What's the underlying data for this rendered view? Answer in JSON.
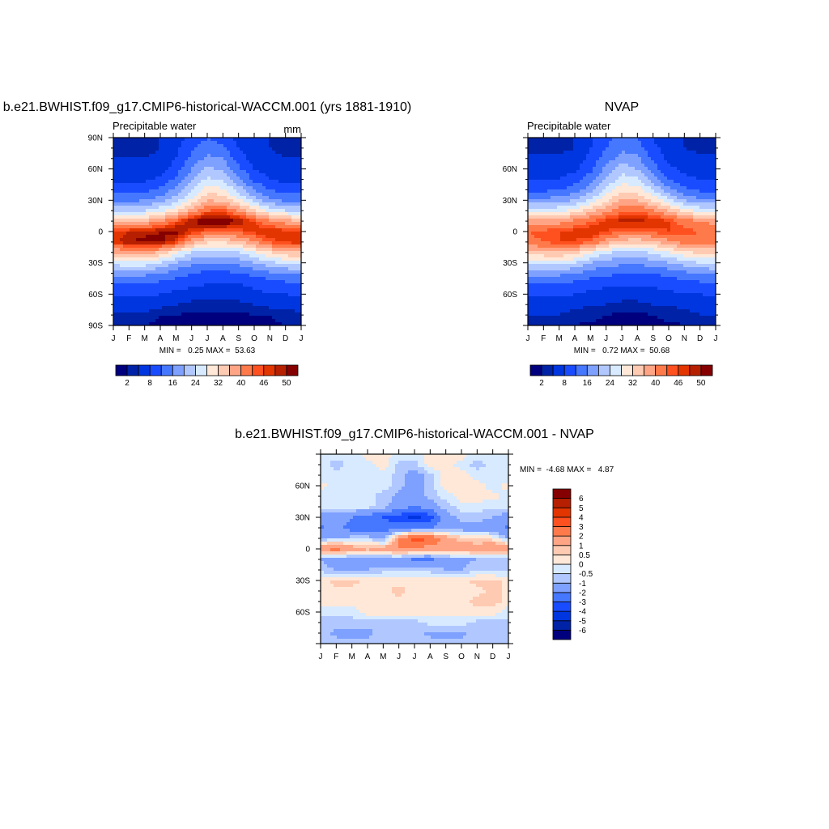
{
  "chart_data": [
    {
      "id": "model",
      "type": "heatmap",
      "title": "b.e21.BWHIST.f09_g17.CMIP6-historical-WACCM.001 (yrs 1881-1910)",
      "subtitle": "Precipitable water",
      "units": "mm",
      "x_ticks": [
        "J",
        "F",
        "M",
        "A",
        "M",
        "J",
        "J",
        "A",
        "S",
        "O",
        "N",
        "D",
        "J"
      ],
      "y_ticks": [
        {
          "value": 90,
          "label": "90N"
        },
        {
          "value": 60,
          "label": "60N"
        },
        {
          "value": 30,
          "label": "30N"
        },
        {
          "value": 0,
          "label": "0"
        },
        {
          "value": -30,
          "label": "30S"
        },
        {
          "value": -60,
          "label": "60S"
        },
        {
          "value": -90,
          "label": "90S"
        }
      ],
      "ylim": [
        -90,
        90
      ],
      "lat": [
        90,
        80,
        70,
        60,
        50,
        40,
        30,
        20,
        10,
        0,
        -10,
        -20,
        -30,
        -40,
        -50,
        -60,
        -70,
        -80,
        -90
      ],
      "values": [
        [
          3,
          3,
          3,
          4,
          6,
          9,
          12,
          10,
          7,
          5,
          4,
          3,
          3
        ],
        [
          3,
          3,
          3,
          4,
          7,
          11,
          14,
          13,
          8,
          5,
          4,
          3,
          3
        ],
        [
          4,
          4,
          4,
          5,
          8,
          13,
          17,
          16,
          10,
          6,
          5,
          4,
          4
        ],
        [
          5,
          5,
          5,
          6,
          10,
          16,
          21,
          19,
          13,
          8,
          6,
          5,
          5
        ],
        [
          7,
          7,
          7,
          9,
          13,
          19,
          25,
          23,
          17,
          11,
          8,
          7,
          7
        ],
        [
          10,
          10,
          11,
          13,
          17,
          23,
          30,
          29,
          22,
          16,
          12,
          10,
          10
        ],
        [
          15,
          15,
          16,
          18,
          22,
          29,
          36,
          35,
          29,
          22,
          17,
          15,
          15
        ],
        [
          24,
          23,
          24,
          27,
          31,
          38,
          44,
          45,
          40,
          33,
          27,
          24,
          24
        ],
        [
          36,
          35,
          36,
          40,
          45,
          50,
          53,
          53,
          50,
          46,
          41,
          38,
          36
        ],
        [
          47,
          48,
          49,
          50,
          51,
          47,
          44,
          44,
          45,
          47,
          48,
          47,
          47
        ],
        [
          47,
          50,
          51,
          51,
          47,
          38,
          33,
          32,
          35,
          40,
          45,
          47,
          47
        ],
        [
          36,
          38,
          38,
          35,
          29,
          24,
          22,
          22,
          24,
          28,
          32,
          35,
          36
        ],
        [
          26,
          27,
          27,
          24,
          20,
          17,
          16,
          16,
          17,
          20,
          23,
          25,
          26
        ],
        [
          17,
          18,
          17,
          16,
          14,
          12,
          11,
          11,
          12,
          13,
          15,
          16,
          17
        ],
        [
          12,
          12,
          12,
          11,
          10,
          9,
          8,
          8,
          8,
          9,
          10,
          11,
          12
        ],
        [
          9,
          9,
          9,
          8,
          7,
          6,
          6,
          6,
          6,
          7,
          8,
          8,
          9
        ],
        [
          6,
          6,
          6,
          5,
          4,
          3,
          3,
          3,
          3,
          4,
          5,
          5,
          6
        ],
        [
          3,
          3,
          3,
          2,
          2,
          1.5,
          1.5,
          1.5,
          1.5,
          2,
          2,
          3,
          3
        ],
        [
          2,
          2,
          2,
          1.5,
          1,
          0.5,
          0.5,
          0.5,
          0.5,
          1,
          1.5,
          2,
          2
        ]
      ],
      "min_max_label": "MIN =   0.25 MAX =  53.63",
      "colorbar": {
        "orientation": "horizontal",
        "levels": [
          2,
          4,
          8,
          12,
          16,
          20,
          24,
          28,
          32,
          36,
          40,
          44,
          46,
          48,
          50
        ],
        "labeled_levels": [
          2,
          8,
          16,
          24,
          32,
          40,
          46,
          50
        ]
      }
    },
    {
      "id": "nvap",
      "type": "heatmap",
      "title": "NVAP",
      "subtitle": "Precipitable water",
      "x_ticks": [
        "J",
        "F",
        "M",
        "A",
        "M",
        "J",
        "J",
        "A",
        "S",
        "O",
        "N",
        "D",
        "J"
      ],
      "y_ticks": [
        {
          "value": 60,
          "label": "60N"
        },
        {
          "value": 30,
          "label": "30N"
        },
        {
          "value": 0,
          "label": "0"
        },
        {
          "value": -30,
          "label": "30S"
        },
        {
          "value": -60,
          "label": "60S"
        }
      ],
      "ylim": [
        -90,
        90
      ],
      "lat": [
        90,
        80,
        70,
        60,
        50,
        40,
        30,
        20,
        10,
        0,
        -10,
        -20,
        -30,
        -40,
        -50,
        -60,
        -70,
        -80,
        -90
      ],
      "values": [
        [
          3,
          3,
          3,
          4,
          7,
          11,
          14,
          12,
          8,
          5,
          4,
          3,
          3
        ],
        [
          3,
          3,
          3,
          4,
          8,
          12,
          15,
          14,
          9,
          6,
          4,
          3,
          3
        ],
        [
          5,
          5,
          5,
          6,
          9,
          14,
          18,
          17,
          11,
          7,
          6,
          5,
          5
        ],
        [
          6,
          6,
          6,
          7,
          11,
          17,
          22,
          20,
          14,
          9,
          7,
          6,
          6
        ],
        [
          8,
          8,
          8,
          10,
          14,
          20,
          26,
          25,
          18,
          12,
          9,
          8,
          8
        ],
        [
          11,
          11,
          12,
          14,
          18,
          25,
          31,
          30,
          24,
          17,
          13,
          11,
          11
        ],
        [
          17,
          17,
          18,
          20,
          25,
          31,
          37,
          36,
          31,
          25,
          20,
          17,
          17
        ],
        [
          27,
          26,
          27,
          30,
          34,
          39,
          43,
          44,
          41,
          36,
          30,
          27,
          27
        ],
        [
          38,
          37,
          38,
          41,
          44,
          47,
          49,
          49,
          48,
          46,
          42,
          40,
          38
        ],
        [
          44,
          45,
          46,
          47,
          48,
          46,
          44,
          44,
          45,
          46,
          45,
          44,
          44
        ],
        [
          43,
          44,
          46,
          46,
          44,
          38,
          34,
          33,
          35,
          39,
          42,
          43,
          43
        ],
        [
          33,
          35,
          36,
          34,
          29,
          25,
          23,
          23,
          25,
          28,
          31,
          33,
          33
        ],
        [
          25,
          26,
          26,
          24,
          20,
          18,
          17,
          17,
          18,
          20,
          22,
          24,
          25
        ],
        [
          17,
          18,
          17,
          16,
          14,
          13,
          12,
          12,
          12,
          13,
          15,
          16,
          17
        ],
        [
          12,
          12,
          12,
          11,
          10,
          9,
          9,
          9,
          9,
          10,
          10,
          11,
          12
        ],
        [
          9,
          9,
          9,
          8,
          7,
          6,
          6,
          6,
          6,
          7,
          8,
          8,
          9
        ],
        [
          6,
          6,
          6,
          5,
          4,
          4,
          3,
          3,
          4,
          4,
          5,
          5,
          6
        ],
        [
          4,
          4,
          4,
          3,
          3,
          2,
          1.5,
          1.5,
          2,
          3,
          3,
          4,
          4
        ],
        [
          2,
          2,
          2,
          2,
          1.5,
          1,
          1,
          1,
          1,
          1.5,
          2,
          2,
          2
        ]
      ],
      "min_max_label": "MIN =   0.72 MAX =  50.68",
      "colorbar": {
        "orientation": "horizontal",
        "levels": [
          2,
          4,
          8,
          12,
          16,
          20,
          24,
          28,
          32,
          36,
          40,
          44,
          46,
          48,
          50
        ],
        "labeled_levels": [
          2,
          8,
          16,
          24,
          32,
          40,
          46,
          50
        ]
      }
    },
    {
      "id": "diff",
      "type": "heatmap",
      "title": "b.e21.BWHIST.f09_g17.CMIP6-historical-WACCM.001 - NVAP",
      "x_ticks": [
        "J",
        "F",
        "M",
        "A",
        "M",
        "J",
        "J",
        "A",
        "S",
        "O",
        "N",
        "D",
        "J"
      ],
      "y_ticks": [
        {
          "value": 60,
          "label": "60N"
        },
        {
          "value": 30,
          "label": "30N"
        },
        {
          "value": 0,
          "label": "0"
        },
        {
          "value": -30,
          "label": "30S"
        },
        {
          "value": -60,
          "label": "60S"
        }
      ],
      "ylim": [
        -90,
        90
      ],
      "lat": [
        90,
        80,
        70,
        60,
        50,
        40,
        30,
        20,
        10,
        0,
        -10,
        -20,
        -30,
        -40,
        -50,
        -60,
        -70,
        -80,
        -90
      ],
      "values": [
        [
          -0.3,
          -0.3,
          -0.3,
          0.3,
          0.3,
          -0.3,
          -0.3,
          0.3,
          0.3,
          0.3,
          -0.3,
          -0.3,
          -0.3
        ],
        [
          -0.3,
          -0.7,
          -0.3,
          -0.3,
          0.3,
          -0.7,
          -0.7,
          0.3,
          0.3,
          -0.3,
          -0.7,
          -0.3,
          -0.3
        ],
        [
          -0.3,
          -0.3,
          -0.3,
          -0.3,
          -0.3,
          -0.7,
          -1.5,
          -0.7,
          0.3,
          0.3,
          -0.3,
          -0.3,
          -0.3
        ],
        [
          0.2,
          -0.3,
          -0.3,
          -0.3,
          -0.3,
          -0.7,
          -1.5,
          -0.8,
          0.3,
          0.3,
          0.3,
          -0.3,
          0.2
        ],
        [
          -0.3,
          -0.3,
          -0.3,
          -0.3,
          -0.7,
          -1.2,
          -1.5,
          -0.8,
          -0.3,
          0.3,
          0.3,
          0.2,
          -0.3
        ],
        [
          -0.3,
          -0.3,
          -0.3,
          -0.3,
          -0.7,
          -1.5,
          -2.2,
          -1.5,
          -0.7,
          -0.3,
          -0.3,
          -0.3,
          -0.3
        ],
        [
          -1.5,
          -1.5,
          -2,
          -2.5,
          -3,
          -3.5,
          -4.3,
          -3.5,
          -1.5,
          -0.7,
          -0.7,
          -1,
          -1.5
        ],
        [
          -2.2,
          -1.5,
          -2.5,
          -3,
          -2.5,
          -2.5,
          -2.2,
          -2,
          -1.5,
          -1.5,
          -1.5,
          -1.5,
          -2.2
        ],
        [
          -1,
          -1,
          -0.7,
          -0.5,
          -1.5,
          2,
          3.5,
          3,
          1.5,
          0.7,
          0.5,
          0.3,
          -1
        ],
        [
          2,
          2.5,
          1.5,
          1.2,
          1.5,
          2,
          2,
          1.5,
          1.5,
          1.5,
          1.5,
          2,
          2
        ],
        [
          -1,
          -1.5,
          -1.5,
          -1.5,
          -1.5,
          -1.5,
          -2.2,
          -2.2,
          -1.5,
          -1.2,
          -1,
          -1,
          -1
        ],
        [
          -0.7,
          -1,
          -1,
          -1,
          -0.7,
          -0.7,
          -0.7,
          -0.7,
          -1,
          -1,
          -0.7,
          -0.7,
          -0.7
        ],
        [
          0.3,
          0.7,
          0.7,
          0.3,
          0.3,
          0.3,
          0.3,
          0.3,
          0.3,
          0.3,
          0.7,
          0.7,
          0.3
        ],
        [
          0.3,
          0.3,
          0.3,
          0.3,
          0.3,
          0.7,
          0.3,
          0.3,
          0.3,
          0.3,
          0.3,
          0.7,
          0.3
        ],
        [
          0.3,
          0.3,
          0.3,
          0.3,
          0.3,
          0.3,
          0.3,
          0.3,
          0.3,
          0.3,
          0.7,
          0.7,
          0.3
        ],
        [
          -0.3,
          -0.3,
          -0.3,
          0.3,
          0.3,
          0.3,
          0.3,
          0.3,
          0.3,
          0.3,
          0.3,
          0.3,
          -0.3
        ],
        [
          -0.7,
          -0.7,
          -0.7,
          -0.7,
          -0.7,
          -0.7,
          -0.7,
          -0.3,
          -0.3,
          -0.3,
          -0.7,
          -0.7,
          -0.7
        ],
        [
          -0.7,
          -1.2,
          -1.2,
          -1.2,
          -0.7,
          -0.7,
          -0.7,
          -1.2,
          -1.2,
          -1.2,
          -0.7,
          -0.7,
          -0.7
        ],
        [
          -0.7,
          -0.7,
          -0.7,
          -0.7,
          -0.7,
          -0.7,
          -0.7,
          -0.7,
          -0.7,
          -0.7,
          -0.7,
          -0.7,
          -0.7
        ]
      ],
      "min_max_label": "MIN =  -4.68 MAX =   4.87",
      "colorbar": {
        "orientation": "vertical",
        "levels": [
          -6,
          -5,
          -4,
          -3,
          -2,
          -1,
          -0.5,
          0,
          0.5,
          1,
          2,
          3,
          4,
          5,
          6
        ],
        "labeled_levels": [
          -6,
          -5,
          -4,
          -3,
          -2,
          -1,
          -0.5,
          0,
          0.5,
          1,
          2,
          3,
          4,
          5,
          6
        ]
      }
    }
  ],
  "colors": [
    "#00007f",
    "#0022a6",
    "#0036e0",
    "#1a4cff",
    "#4677ff",
    "#7ea0ff",
    "#b0c8ff",
    "#d8eaff",
    "#ffe8d8",
    "#ffcab2",
    "#ffa585",
    "#ff7a4a",
    "#ff5020",
    "#e33500",
    "#b61f00",
    "#850000"
  ]
}
